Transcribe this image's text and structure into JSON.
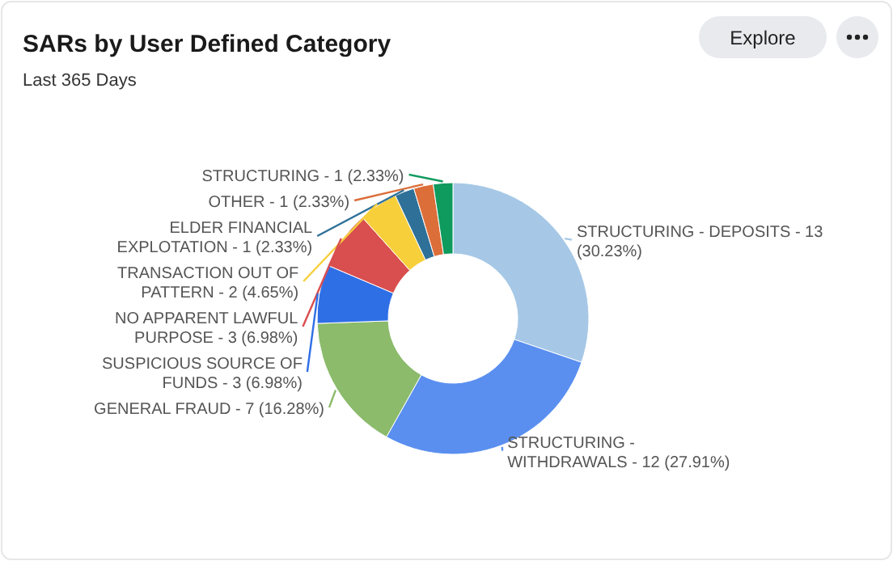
{
  "chart_data": {
    "type": "donut",
    "title": "SARs by User Defined Category",
    "subtitle": "Last 365 Days",
    "annotations": [
      "Explore"
    ],
    "categories": [
      "STRUCTURING - DEPOSITS",
      "STRUCTURING - WITHDRAWALS",
      "GENERAL FRAUD",
      "SUSPICIOUS SOURCE OF FUNDS",
      "NO APPARENT LAWFUL PURPOSE",
      "TRANSACTION OUT OF PATTERN",
      "ELDER FINANCIAL EXPLOTATION",
      "OTHER",
      "STRUCTURING"
    ],
    "values": [
      13,
      12,
      7,
      3,
      3,
      2,
      1,
      1,
      1
    ],
    "value_labels": [
      "13 (30.23%)",
      "12 (27.91%)",
      "7 (16.28%)",
      "3 (6.98%)",
      "3 (6.98%)",
      "2 (4.65%)",
      "1 (2.33%)",
      "1 (2.33%)",
      "1 (2.33%)"
    ],
    "colors": [
      "#a6c8e6",
      "#5a8ff0",
      "#8bbb6b",
      "#2f6fe6",
      "#d94e4e",
      "#f7cf3b",
      "#2f7098",
      "#dc6e3a",
      "#0f9a5e"
    ]
  }
}
